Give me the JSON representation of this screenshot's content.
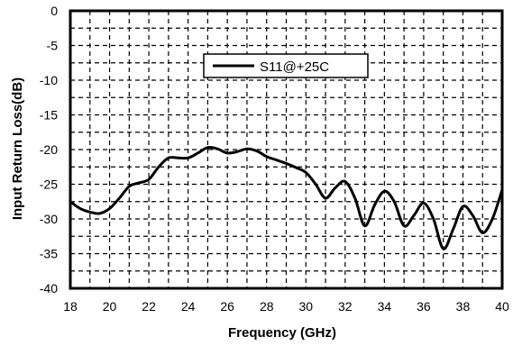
{
  "chart_data": {
    "type": "line",
    "xlabel": "Frequency (GHz)",
    "ylabel": "Input Return Loss(dB)",
    "xlim": [
      18,
      40
    ],
    "ylim": [
      -40,
      0
    ],
    "grid": true,
    "legend_position": "top-center",
    "x_ticks": [
      "18",
      "20",
      "22",
      "24",
      "26",
      "28",
      "30",
      "32",
      "34",
      "36",
      "38",
      "40"
    ],
    "y_ticks": [
      "0",
      "-5",
      "-10",
      "-15",
      "-20",
      "-25",
      "-30",
      "-35",
      "-40"
    ],
    "series": [
      {
        "name": "S11@+25C",
        "color": "#000000",
        "points": [
          [
            18,
            -27.5
          ],
          [
            18.5,
            -28.5
          ],
          [
            19,
            -29.0
          ],
          [
            19.5,
            -29.2
          ],
          [
            20,
            -28.5
          ],
          [
            20.5,
            -27.0
          ],
          [
            21,
            -25.3
          ],
          [
            21.5,
            -24.8
          ],
          [
            22,
            -24.3
          ],
          [
            22.5,
            -22.5
          ],
          [
            23,
            -21.2
          ],
          [
            23.5,
            -21.2
          ],
          [
            24,
            -21.2
          ],
          [
            24.5,
            -20.5
          ],
          [
            25,
            -19.7
          ],
          [
            25.5,
            -19.9
          ],
          [
            26,
            -20.5
          ],
          [
            26.5,
            -20.3
          ],
          [
            27,
            -19.9
          ],
          [
            27.5,
            -20.2
          ],
          [
            28,
            -21.0
          ],
          [
            28.5,
            -21.5
          ],
          [
            29,
            -22.0
          ],
          [
            29.5,
            -22.6
          ],
          [
            30,
            -23.3
          ],
          [
            30.5,
            -25.0
          ],
          [
            31,
            -27.0
          ],
          [
            31.5,
            -25.5
          ],
          [
            32,
            -24.6
          ],
          [
            32.5,
            -27.0
          ],
          [
            33,
            -31.0
          ],
          [
            33.5,
            -28.0
          ],
          [
            34,
            -26.0
          ],
          [
            34.5,
            -27.5
          ],
          [
            35,
            -31.0
          ],
          [
            35.5,
            -29.5
          ],
          [
            36,
            -27.7
          ],
          [
            36.5,
            -30.0
          ],
          [
            37,
            -34.3
          ],
          [
            37.5,
            -31.5
          ],
          [
            38,
            -28.2
          ],
          [
            38.5,
            -29.5
          ],
          [
            39,
            -32.0
          ],
          [
            39.5,
            -30.0
          ],
          [
            40,
            -25.8
          ]
        ]
      }
    ]
  }
}
